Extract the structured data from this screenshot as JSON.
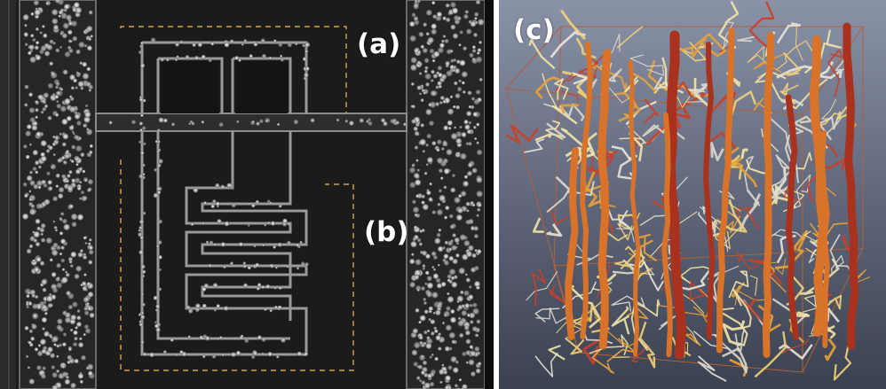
{
  "figure": {
    "panel_labels": {
      "a": "(a)",
      "b": "(b)",
      "c": "(c)"
    },
    "colors": {
      "microscopy_background": "#1a1a1a",
      "channel_wall": "#8c8c8c",
      "cell_highlight": "#e6e6e6",
      "dashed_box": "#d7a24a",
      "render_background_top": "#8a92a8",
      "render_background_bottom": "#3a4150",
      "bounding_box": "#b0603a",
      "vessel_large": "#d9732a",
      "vessel_medium": "#e8a23a",
      "vessel_small": "#f0d27a",
      "capillary_pale": "#e8e4d8",
      "vessel_dark": "#a8321e"
    }
  }
}
